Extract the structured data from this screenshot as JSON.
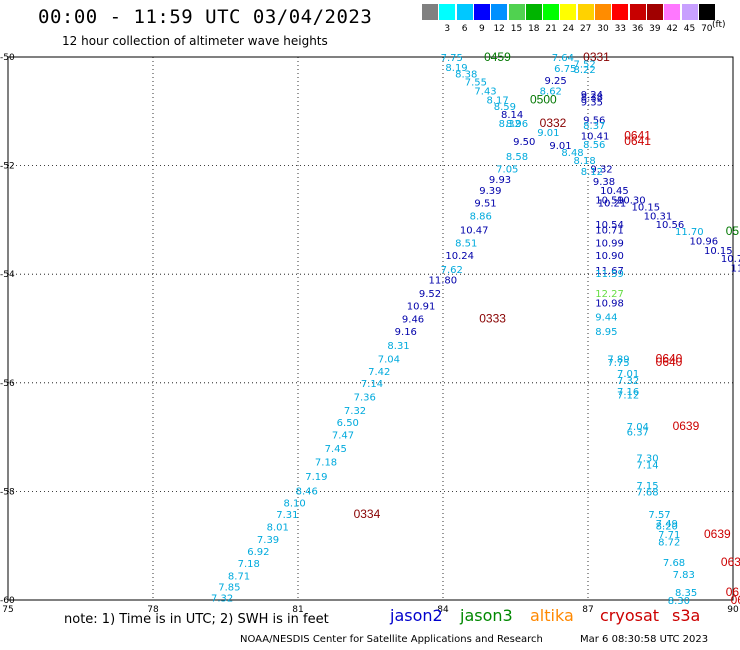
{
  "header": {
    "title": "00:00 - 11:59 UTC 03/04/2023",
    "subtitle": "12 hour collection of altimeter wave heights"
  },
  "legend": {
    "unit": "(ft)",
    "swatches": [
      {
        "label": "",
        "color": "#808080"
      },
      {
        "label": "3",
        "color": "#00ffff"
      },
      {
        "label": "6",
        "color": "#00c8ff"
      },
      {
        "label": "9",
        "color": "#0000ff"
      },
      {
        "label": "12",
        "color": "#0090ff"
      },
      {
        "label": "15",
        "color": "#50d250"
      },
      {
        "label": "18",
        "color": "#00b400"
      },
      {
        "label": "21",
        "color": "#00ff00"
      },
      {
        "label": "24",
        "color": "#ffff00"
      },
      {
        "label": "27",
        "color": "#ffd200"
      },
      {
        "label": "30",
        "color": "#ff8c00"
      },
      {
        "label": "33",
        "color": "#ff0000"
      },
      {
        "label": "36",
        "color": "#c80000"
      },
      {
        "label": "39",
        "color": "#a00000"
      },
      {
        "label": "42",
        "color": "#ff78ff"
      },
      {
        "label": "45",
        "color": "#c8a0ff"
      },
      {
        "label": "70",
        "color": "#000000"
      }
    ]
  },
  "map": {
    "lon_range": [
      75,
      90
    ],
    "lat_range": [
      -60,
      -50
    ],
    "lon_ticks": [
      "75",
      "78",
      "81",
      "84",
      "87",
      "90"
    ],
    "lat_ticks": [
      "-50",
      "-52",
      "-54",
      "-56",
      "-58",
      "-60"
    ],
    "colors": {
      "jason2": "#0000cc",
      "jason3": "#008800",
      "altika": "#ff8800",
      "cryosat": "#cc0000",
      "s3a": "#cc0000",
      "light": "#00aadd",
      "dark": "#0000aa",
      "maroon": "#880000",
      "green": "#007700",
      "lime": "#66dd44"
    },
    "labels": [
      {
        "t": "7.75",
        "x": 83.95,
        "y": -50.0,
        "c": "light"
      },
      {
        "t": "0459",
        "x": 84.85,
        "y": -50.0,
        "c": "green"
      },
      {
        "t": "8.19",
        "x": 84.05,
        "y": -50.18,
        "c": "light"
      },
      {
        "t": "8.38",
        "x": 84.25,
        "y": -50.3,
        "c": "light"
      },
      {
        "t": "7.55",
        "x": 84.45,
        "y": -50.45,
        "c": "light"
      },
      {
        "t": "7.43",
        "x": 84.65,
        "y": -50.62,
        "c": "light"
      },
      {
        "t": "8.17",
        "x": 84.9,
        "y": -50.78,
        "c": "light"
      },
      {
        "t": "8.59",
        "x": 85.05,
        "y": -50.9,
        "c": "light"
      },
      {
        "t": "8.14",
        "x": 85.2,
        "y": -51.05,
        "c": "dark"
      },
      {
        "t": "8.32",
        "x": 85.15,
        "y": -51.22,
        "c": "light"
      },
      {
        "t": "8.96",
        "x": 85.3,
        "y": -51.22,
        "c": "light"
      },
      {
        "t": "7.64",
        "x": 86.25,
        "y": -50.0,
        "c": "light"
      },
      {
        "t": "0331",
        "x": 86.9,
        "y": -50.0,
        "c": "maroon"
      },
      {
        "t": "6.75",
        "x": 86.3,
        "y": -50.2,
        "c": "light"
      },
      {
        "t": "7.52",
        "x": 86.7,
        "y": -50.12,
        "c": "light"
      },
      {
        "t": "8.22",
        "x": 86.7,
        "y": -50.22,
        "c": "light"
      },
      {
        "t": "9.25",
        "x": 86.1,
        "y": -50.42,
        "c": "dark"
      },
      {
        "t": "8.62",
        "x": 86.0,
        "y": -50.62,
        "c": "light"
      },
      {
        "t": "0500",
        "x": 85.8,
        "y": -50.78,
        "c": "green"
      },
      {
        "t": "9.24",
        "x": 86.85,
        "y": -50.68,
        "c": "dark"
      },
      {
        "t": "8.38",
        "x": 86.85,
        "y": -50.73,
        "c": "dark"
      },
      {
        "t": "9.35",
        "x": 86.85,
        "y": -50.82,
        "c": "dark"
      },
      {
        "t": "0332",
        "x": 86.0,
        "y": -51.22,
        "c": "maroon"
      },
      {
        "t": "9.56",
        "x": 86.9,
        "y": -51.15,
        "c": "dark"
      },
      {
        "t": "8.37",
        "x": 86.9,
        "y": -51.25,
        "c": "light"
      },
      {
        "t": "9.01",
        "x": 85.95,
        "y": -51.38,
        "c": "light"
      },
      {
        "t": "9.50",
        "x": 85.45,
        "y": -51.55,
        "c": "dark"
      },
      {
        "t": "10.41",
        "x": 86.85,
        "y": -51.45,
        "c": "dark"
      },
      {
        "t": "0641",
        "x": 87.75,
        "y": -51.45,
        "c": "cryosat"
      },
      {
        "t": "0641",
        "x": 87.75,
        "y": -51.55,
        "c": "cryosat"
      },
      {
        "t": "9.01",
        "x": 86.2,
        "y": -51.62,
        "c": "dark"
      },
      {
        "t": "8.56",
        "x": 86.9,
        "y": -51.6,
        "c": "light"
      },
      {
        "t": "8.48",
        "x": 86.45,
        "y": -51.75,
        "c": "light"
      },
      {
        "t": "8.58",
        "x": 85.3,
        "y": -51.82,
        "c": "light"
      },
      {
        "t": "8.18",
        "x": 86.7,
        "y": -51.9,
        "c": "light"
      },
      {
        "t": "7.05",
        "x": 85.1,
        "y": -52.05,
        "c": "light"
      },
      {
        "t": "9.32",
        "x": 87.05,
        "y": -52.05,
        "c": "dark"
      },
      {
        "t": "8.12",
        "x": 86.85,
        "y": -52.1,
        "c": "light"
      },
      {
        "t": "9.93",
        "x": 84.95,
        "y": -52.25,
        "c": "dark"
      },
      {
        "t": "9.38",
        "x": 87.1,
        "y": -52.28,
        "c": "dark"
      },
      {
        "t": "10.45",
        "x": 87.25,
        "y": -52.45,
        "c": "dark"
      },
      {
        "t": "9.39",
        "x": 84.75,
        "y": -52.45,
        "c": "dark"
      },
      {
        "t": "10.59",
        "x": 87.15,
        "y": -52.62,
        "c": "dark"
      },
      {
        "t": "10.30",
        "x": 87.6,
        "y": -52.62,
        "c": "dark"
      },
      {
        "t": "10.21",
        "x": 87.2,
        "y": -52.68,
        "c": "dark"
      },
      {
        "t": "9.51",
        "x": 84.65,
        "y": -52.68,
        "c": "dark"
      },
      {
        "t": "10.15",
        "x": 87.9,
        "y": -52.75,
        "c": "dark"
      },
      {
        "t": "10.31",
        "x": 88.15,
        "y": -52.92,
        "c": "dark"
      },
      {
        "t": "8.86",
        "x": 84.55,
        "y": -52.92,
        "c": "light"
      },
      {
        "t": "10.54",
        "x": 87.15,
        "y": -53.08,
        "c": "dark"
      },
      {
        "t": "10.56",
        "x": 88.4,
        "y": -53.08,
        "c": "dark"
      },
      {
        "t": "10.71",
        "x": 87.15,
        "y": -53.18,
        "c": "dark"
      },
      {
        "t": "11.70",
        "x": 88.8,
        "y": -53.2,
        "c": "light"
      },
      {
        "t": "05",
        "x": 89.85,
        "y": -53.2,
        "c": "green"
      },
      {
        "t": "10.47",
        "x": 84.35,
        "y": -53.18,
        "c": "dark"
      },
      {
        "t": "10.96",
        "x": 89.1,
        "y": -53.38,
        "c": "dark"
      },
      {
        "t": "10.99",
        "x": 87.15,
        "y": -53.42,
        "c": "dark"
      },
      {
        "t": "8.51",
        "x": 84.25,
        "y": -53.42,
        "c": "light"
      },
      {
        "t": "10.15",
        "x": 89.4,
        "y": -53.55,
        "c": "dark"
      },
      {
        "t": "10.90",
        "x": 87.15,
        "y": -53.65,
        "c": "dark"
      },
      {
        "t": "10.7",
        "x": 89.75,
        "y": -53.7,
        "c": "dark"
      },
      {
        "t": "10.24",
        "x": 84.05,
        "y": -53.65,
        "c": "dark"
      },
      {
        "t": "11",
        "x": 89.95,
        "y": -53.88,
        "c": "dark"
      },
      {
        "t": "11.67",
        "x": 87.15,
        "y": -53.92,
        "c": "dark"
      },
      {
        "t": "11.59",
        "x": 87.15,
        "y": -53.98,
        "c": "light"
      },
      {
        "t": "7.62",
        "x": 83.95,
        "y": -53.9,
        "c": "light"
      },
      {
        "t": "11.80",
        "x": 83.7,
        "y": -54.1,
        "c": "dark"
      },
      {
        "t": "12.27",
        "x": 87.15,
        "y": -54.35,
        "c": "lime"
      },
      {
        "t": "9.52",
        "x": 83.5,
        "y": -54.35,
        "c": "dark"
      },
      {
        "t": "10.98",
        "x": 87.15,
        "y": -54.52,
        "c": "dark"
      },
      {
        "t": "10.91",
        "x": 83.25,
        "y": -54.58,
        "c": "dark"
      },
      {
        "t": "9.44",
        "x": 87.15,
        "y": -54.78,
        "c": "light"
      },
      {
        "t": "9.46",
        "x": 83.15,
        "y": -54.82,
        "c": "dark"
      },
      {
        "t": "0333",
        "x": 84.75,
        "y": -54.82,
        "c": "maroon"
      },
      {
        "t": "8.95",
        "x": 87.15,
        "y": -55.05,
        "c": "light"
      },
      {
        "t": "9.16",
        "x": 83.0,
        "y": -55.05,
        "c": "dark"
      },
      {
        "t": "8.31",
        "x": 82.85,
        "y": -55.3,
        "c": "light"
      },
      {
        "t": "7.89",
        "x": 87.4,
        "y": -55.55,
        "c": "light"
      },
      {
        "t": "7.75",
        "x": 87.4,
        "y": -55.62,
        "c": "light"
      },
      {
        "t": "0640",
        "x": 88.4,
        "y": -55.55,
        "c": "cryosat"
      },
      {
        "t": "0640",
        "x": 88.4,
        "y": -55.62,
        "c": "cryosat"
      },
      {
        "t": "7.04",
        "x": 82.65,
        "y": -55.55,
        "c": "light"
      },
      {
        "t": "7.42",
        "x": 82.45,
        "y": -55.78,
        "c": "light"
      },
      {
        "t": "7.01",
        "x": 87.6,
        "y": -55.82,
        "c": "light"
      },
      {
        "t": "7.14",
        "x": 82.3,
        "y": -56.0,
        "c": "light"
      },
      {
        "t": "7.32",
        "x": 87.6,
        "y": -55.95,
        "c": "light"
      },
      {
        "t": "7.16",
        "x": 87.6,
        "y": -56.15,
        "c": "light"
      },
      {
        "t": "7.12",
        "x": 87.6,
        "y": -56.22,
        "c": "light"
      },
      {
        "t": "7.36",
        "x": 82.15,
        "y": -56.25,
        "c": "light"
      },
      {
        "t": "7.32",
        "x": 81.95,
        "y": -56.5,
        "c": "light"
      },
      {
        "t": "6.50",
        "x": 81.8,
        "y": -56.72,
        "c": "light"
      },
      {
        "t": "7.04",
        "x": 87.8,
        "y": -56.8,
        "c": "light"
      },
      {
        "t": "0639",
        "x": 88.75,
        "y": -56.8,
        "c": "cryosat"
      },
      {
        "t": "6.37",
        "x": 87.8,
        "y": -56.9,
        "c": "light"
      },
      {
        "t": "7.47",
        "x": 81.7,
        "y": -56.95,
        "c": "light"
      },
      {
        "t": "7.45",
        "x": 81.55,
        "y": -57.2,
        "c": "light"
      },
      {
        "t": "7.30",
        "x": 88.0,
        "y": -57.38,
        "c": "light"
      },
      {
        "t": "7.14",
        "x": 88.0,
        "y": -57.5,
        "c": "light"
      },
      {
        "t": "7.18",
        "x": 81.35,
        "y": -57.45,
        "c": "light"
      },
      {
        "t": "7.19",
        "x": 81.15,
        "y": -57.72,
        "c": "light"
      },
      {
        "t": "7.15",
        "x": 88.0,
        "y": -57.88,
        "c": "light"
      },
      {
        "t": "7.68",
        "x": 88.0,
        "y": -58.0,
        "c": "light"
      },
      {
        "t": "8.46",
        "x": 80.95,
        "y": -57.98,
        "c": "light"
      },
      {
        "t": "8.10",
        "x": 80.7,
        "y": -58.2,
        "c": "light"
      },
      {
        "t": "7.31",
        "x": 80.55,
        "y": -58.42,
        "c": "light"
      },
      {
        "t": "0334",
        "x": 82.15,
        "y": -58.42,
        "c": "maroon"
      },
      {
        "t": "7.57",
        "x": 88.25,
        "y": -58.42,
        "c": "light"
      },
      {
        "t": "8.01",
        "x": 80.35,
        "y": -58.65,
        "c": "light"
      },
      {
        "t": "7.49",
        "x": 88.4,
        "y": -58.58,
        "c": "light"
      },
      {
        "t": "8.20",
        "x": 88.4,
        "y": -58.63,
        "c": "light"
      },
      {
        "t": "7.71",
        "x": 88.45,
        "y": -58.78,
        "c": "light"
      },
      {
        "t": "0639",
        "x": 89.4,
        "y": -58.78,
        "c": "cryosat"
      },
      {
        "t": "7.39",
        "x": 80.15,
        "y": -58.88,
        "c": "light"
      },
      {
        "t": "8.72",
        "x": 88.45,
        "y": -58.92,
        "c": "light"
      },
      {
        "t": "6.92",
        "x": 79.95,
        "y": -59.1,
        "c": "light"
      },
      {
        "t": "7.18",
        "x": 79.75,
        "y": -59.32,
        "c": "light"
      },
      {
        "t": "7.68",
        "x": 88.55,
        "y": -59.3,
        "c": "light"
      },
      {
        "t": "063",
        "x": 89.75,
        "y": -59.3,
        "c": "cryosat"
      },
      {
        "t": "8.71",
        "x": 79.55,
        "y": -59.55,
        "c": "light"
      },
      {
        "t": "7.83",
        "x": 88.75,
        "y": -59.52,
        "c": "light"
      },
      {
        "t": "7.85",
        "x": 79.35,
        "y": -59.75,
        "c": "light"
      },
      {
        "t": "8.35",
        "x": 88.8,
        "y": -59.85,
        "c": "light"
      },
      {
        "t": "06",
        "x": 89.85,
        "y": -59.85,
        "c": "cryosat"
      },
      {
        "t": "7.32",
        "x": 79.2,
        "y": -59.95,
        "c": "light"
      },
      {
        "t": "8.30",
        "x": 88.65,
        "y": -60.0,
        "c": "light"
      },
      {
        "t": "06",
        "x": 89.95,
        "y": -60.0,
        "c": "cryosat"
      }
    ]
  },
  "footer": {
    "note": "note: 1) Time is in UTC; 2) SWH is in feet",
    "satellites": [
      {
        "name": "jason2",
        "color": "#0000cc"
      },
      {
        "name": "jason3",
        "color": "#008800"
      },
      {
        "name": "altika",
        "color": "#ff8800"
      },
      {
        "name": "cryosat",
        "color": "#cc0000"
      },
      {
        "name": "s3a",
        "color": "#cc0000"
      }
    ],
    "credit": "NOAA/NESDIS Center for Satellite Applications and Research",
    "date": "Mar  6 08:30:58 UTC 2023"
  }
}
